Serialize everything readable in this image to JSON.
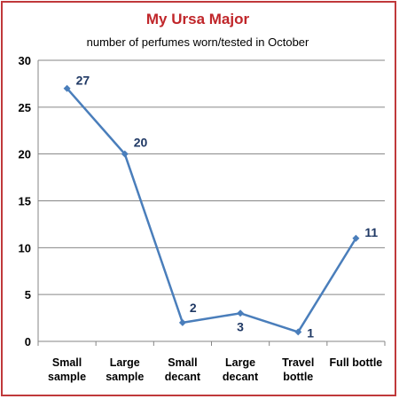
{
  "chart_data": {
    "type": "line",
    "title": "My Ursa Major",
    "subtitle": "number of perfumes worn/tested in October",
    "xlabel": "",
    "ylabel": "",
    "categories": [
      [
        "Small",
        "sample"
      ],
      [
        "Large",
        "sample"
      ],
      [
        "Small",
        "decant"
      ],
      [
        "Large",
        "decant"
      ],
      [
        "Travel",
        "bottle"
      ],
      [
        "Full bottle"
      ]
    ],
    "values": [
      27,
      20,
      2,
      3,
      1,
      11
    ],
    "data_labels": [
      "27",
      "20",
      "2",
      "3",
      "1",
      "11"
    ],
    "ylim": [
      0,
      30
    ],
    "yticks": [
      0,
      5,
      10,
      15,
      20,
      25,
      30
    ],
    "grid": true,
    "legend": "none",
    "colors": {
      "line": "#4a7ebb",
      "marker": "#4a7ebb",
      "title": "#c0262a",
      "data_label": "#1f3864",
      "border": "#c0393b",
      "grid": "#868686"
    }
  }
}
